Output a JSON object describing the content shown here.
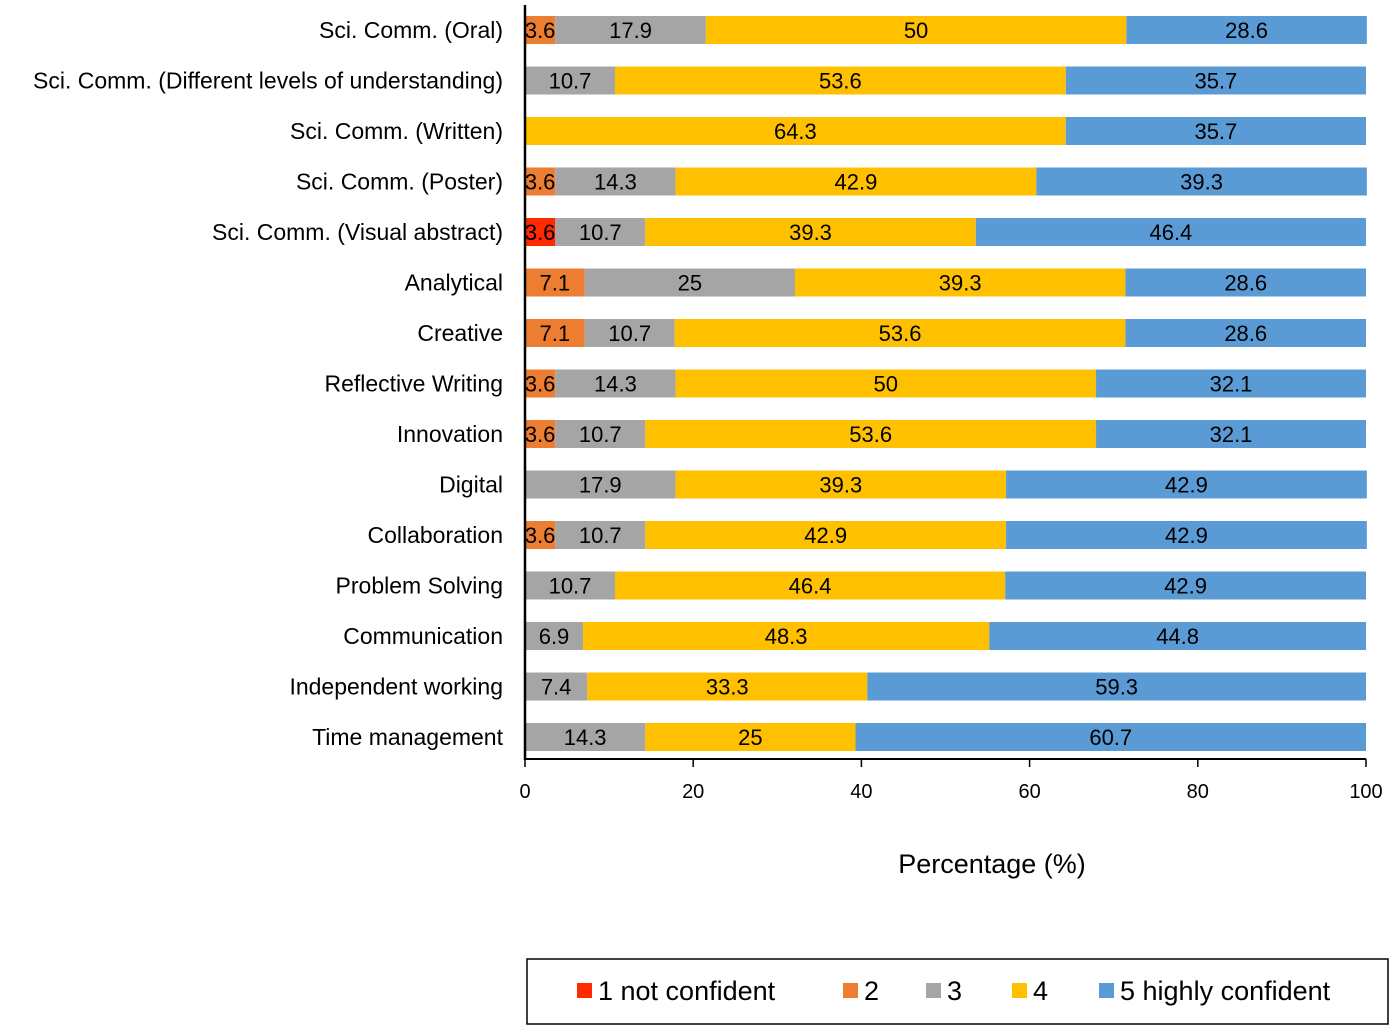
{
  "chart_data": {
    "type": "bar",
    "orientation": "horizontal",
    "stacked": true,
    "title": "",
    "xlabel": "Percentage (%)",
    "ylabel": "",
    "xlim": [
      0,
      100
    ],
    "xticks": [
      0,
      20,
      40,
      60,
      80,
      100
    ],
    "grid": false,
    "legend_position": "bottom",
    "categories": [
      "Sci. Comm. (Oral)",
      "Sci. Comm. (Different levels of understanding)",
      "Sci. Comm. (Written)",
      "Sci. Comm. (Poster)",
      "Sci. Comm. (Visual abstract)",
      "Analytical",
      "Creative",
      "Reflective Writing",
      "Innovation",
      "Digital",
      "Collaboration",
      "Problem Solving",
      "Communication",
      "Independent working",
      "Time management"
    ],
    "series": [
      {
        "name": "1 not confident",
        "color": "#ff2a00",
        "values": [
          0,
          0,
          0,
          0,
          3.6,
          0,
          0,
          0,
          0,
          0,
          0,
          0,
          0,
          0,
          0
        ],
        "labels": [
          "",
          "",
          "",
          "",
          "3.6",
          "",
          "",
          "",
          "",
          "",
          "",
          "",
          "",
          "",
          ""
        ]
      },
      {
        "name": "2",
        "color": "#ed7d31",
        "values": [
          3.6,
          0,
          0,
          3.6,
          0,
          7.1,
          7.1,
          3.6,
          3.6,
          0,
          3.6,
          0,
          0,
          0,
          0
        ],
        "labels": [
          "3.6",
          "",
          "",
          "3.6",
          "",
          "7.1",
          "7.1",
          "3.6",
          "3.6",
          "",
          "3.6",
          "",
          "",
          "",
          ""
        ]
      },
      {
        "name": "3",
        "color": "#a5a5a5",
        "values": [
          17.9,
          10.7,
          0,
          14.3,
          10.7,
          25,
          10.7,
          14.3,
          10.7,
          17.9,
          10.7,
          10.7,
          6.9,
          7.4,
          14.3
        ],
        "labels": [
          "17.9",
          "10.7",
          "",
          "14.3",
          "10.7",
          "25",
          "10.7",
          "14.3",
          "10.7",
          "17.9",
          "10.7",
          "10.7",
          "6.9",
          "7.4",
          "14.3"
        ]
      },
      {
        "name": "4",
        "color": "#ffc000",
        "values": [
          50,
          53.6,
          64.3,
          42.9,
          39.3,
          39.3,
          53.6,
          50,
          53.6,
          39.3,
          42.9,
          46.4,
          48.3,
          33.3,
          25
        ],
        "labels": [
          "50",
          "53.6",
          "64.3",
          "42.9",
          "39.3",
          "39.3",
          "53.6",
          "50",
          "53.6",
          "39.3",
          "42.9",
          "46.4",
          "48.3",
          "33.3",
          "25"
        ]
      },
      {
        "name": "5 highly confident",
        "color": "#5b9bd5",
        "values": [
          28.6,
          35.7,
          35.7,
          39.3,
          46.4,
          28.6,
          28.6,
          32.1,
          32.1,
          42.9,
          42.9,
          42.9,
          44.8,
          59.3,
          60.7
        ],
        "labels": [
          "28.6",
          "35.7",
          "35.7",
          "39.3",
          "46.4",
          "28.6",
          "28.6",
          "32.1",
          "32.1",
          "42.9",
          "42.9",
          "42.9",
          "44.8",
          "59.3",
          "60.7"
        ]
      }
    ]
  }
}
